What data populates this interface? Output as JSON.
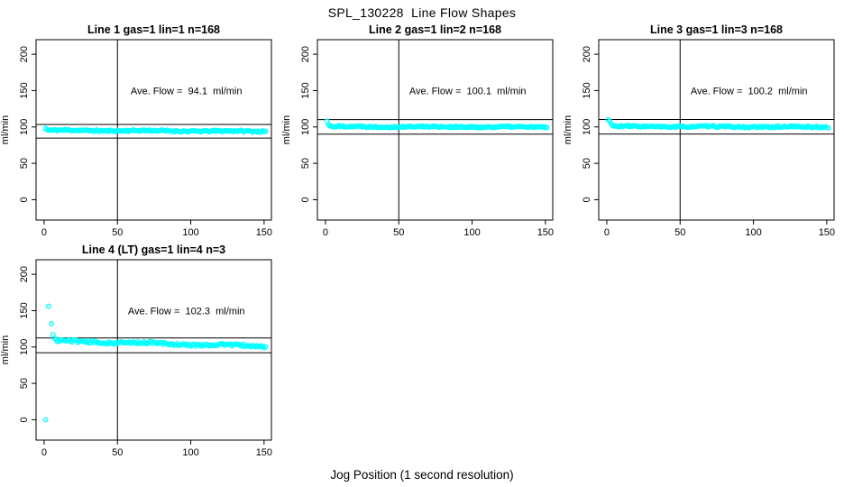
{
  "page_title": "SPL_130228  Line Flow Shapes",
  "x_axis_label": "Jog Position (1 second resolution)",
  "y_axis_label": "ml/min",
  "point_color": "#00FFFF",
  "line_color": "#000000",
  "chart_data": [
    {
      "type": "scatter",
      "title": "Line 1 gas=1 lin=1 n=168",
      "annotation": "Ave. Flow =  94.1  ml/min",
      "ave_flow_ml_min": 94.1,
      "n": 168,
      "ylabel": "ml/min",
      "xlim": [
        -5.5,
        155
      ],
      "ylim": [
        -28,
        220
      ],
      "x_ticks": [
        0,
        50,
        100,
        150
      ],
      "y_ticks": [
        0,
        50,
        100,
        150,
        200
      ],
      "vline_x": 50,
      "hlines_y": [
        103.5,
        84.7
      ],
      "marker": "open-circle",
      "color": "#00FFFF",
      "lead_points": [
        [
          1,
          98
        ],
        [
          2,
          96.3
        ]
      ],
      "steady": {
        "x_start": 3,
        "x_end": 151,
        "y_start": 95.4,
        "y_end": 94.0,
        "jitter": 1.1,
        "wave": 0.4,
        "seed": 11
      }
    },
    {
      "type": "scatter",
      "title": "Line 2 gas=1 lin=2 n=168",
      "annotation": "Ave. Flow =  100.1  ml/min",
      "ave_flow_ml_min": 100.1,
      "n": 168,
      "ylabel": "ml/min",
      "xlim": [
        -5.5,
        155
      ],
      "ylim": [
        -28,
        220
      ],
      "x_ticks": [
        0,
        50,
        100,
        150
      ],
      "y_ticks": [
        0,
        50,
        100,
        150,
        200
      ],
      "vline_x": 50,
      "hlines_y": [
        110.1,
        90.1
      ],
      "marker": "open-circle",
      "color": "#00FFFF",
      "lead_points": [
        [
          1,
          108
        ],
        [
          2,
          103.5
        ],
        [
          3,
          101.5
        ]
      ],
      "steady": {
        "x_start": 4,
        "x_end": 151,
        "y_start": 100.6,
        "y_end": 99.8,
        "jitter": 1.1,
        "wave": 0.4,
        "seed": 22
      }
    },
    {
      "type": "scatter",
      "title": "Line 3 gas=1 lin=3 n=168",
      "annotation": "Ave. Flow =  100.2  ml/min",
      "ave_flow_ml_min": 100.2,
      "n": 168,
      "ylabel": "ml/min",
      "xlim": [
        -5.5,
        155
      ],
      "ylim": [
        -28,
        220
      ],
      "x_ticks": [
        0,
        50,
        100,
        150
      ],
      "y_ticks": [
        0,
        50,
        100,
        150,
        200
      ],
      "vline_x": 50,
      "hlines_y": [
        110.2,
        90.2
      ],
      "marker": "open-circle",
      "color": "#00FFFF",
      "lead_points": [
        [
          1,
          110
        ],
        [
          2,
          108
        ],
        [
          3,
          104
        ],
        [
          4,
          102
        ]
      ],
      "steady": {
        "x_start": 5,
        "x_end": 151,
        "y_start": 100.7,
        "y_end": 99.9,
        "jitter": 1.1,
        "wave": 0.4,
        "seed": 33
      }
    },
    {
      "type": "scatter",
      "title": "Line 4 (LT) gas=1 lin=4 n=3",
      "annotation": "Ave. Flow =  102.3  ml/min",
      "ave_flow_ml_min": 102.3,
      "n": 3,
      "ylabel": "ml/min",
      "xlim": [
        -5.5,
        155
      ],
      "ylim": [
        -28,
        220
      ],
      "x_ticks": [
        0,
        50,
        100,
        150
      ],
      "y_ticks": [
        0,
        50,
        100,
        150,
        200
      ],
      "vline_x": 50,
      "hlines_y": [
        112.5,
        92.1
      ],
      "marker": "open-circle",
      "color": "#00FFFF",
      "lead_points": [
        [
          1,
          0
        ],
        [
          3,
          156
        ],
        [
          5,
          132
        ],
        [
          6,
          117
        ],
        [
          7,
          112
        ]
      ],
      "steady": {
        "x_start": 8,
        "x_end": 151,
        "y_start": 108.3,
        "y_end": 101.0,
        "jitter": 1.7,
        "wave": 0.9,
        "seed": 44
      }
    }
  ]
}
